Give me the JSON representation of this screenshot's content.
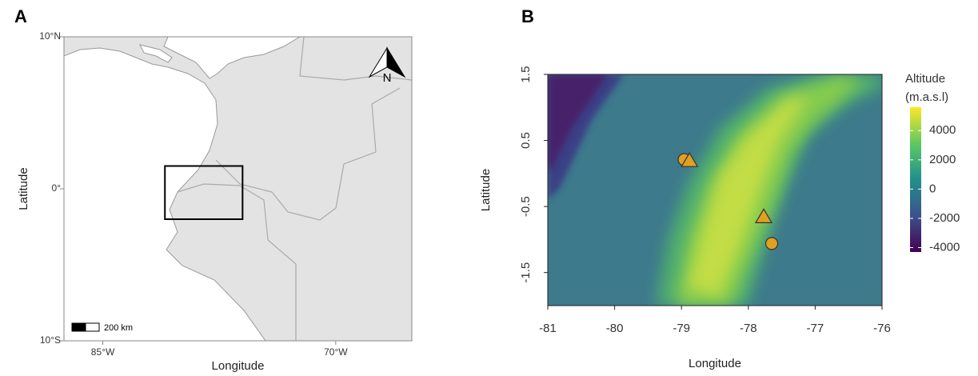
{
  "panels": [
    {
      "label": "A",
      "type": "map",
      "xlabel": "Longitude",
      "ylabel": "Latitude",
      "xlim": [
        -87.5,
        -65.1
      ],
      "ylim": [
        -10,
        10
      ],
      "xticks": [
        {
          "value": -85,
          "label": "85°W"
        },
        {
          "value": -70,
          "label": "70°W"
        }
      ],
      "yticks": [
        {
          "value": 10,
          "label": "10°N"
        },
        {
          "value": 0,
          "label": "0°"
        },
        {
          "value": -10,
          "label": "10°S"
        }
      ],
      "scale_bar": "200 km",
      "north_arrow": "N",
      "land_color": "#e3e3e3"
    },
    {
      "label": "B",
      "type": "raster",
      "xlabel": "Longitude",
      "ylabel": "Latitude",
      "xlim": [
        -81,
        -76
      ],
      "ylim": [
        -2,
        1.5
      ],
      "xticks": [
        -81,
        -80,
        -79,
        -78,
        -77,
        -76
      ],
      "yticks": [
        1.5,
        0.5,
        -0.5,
        -1.5
      ],
      "colorbar": {
        "title": [
          "Altitude",
          "(m.a.s.l)"
        ],
        "lim": [
          -4300,
          5600
        ],
        "ticks": [
          4000,
          2000,
          0,
          -2000,
          -4000
        ]
      },
      "point_color": "#e0a020",
      "points": [
        {
          "shape": "circle",
          "x": -78.96,
          "y": 0.21
        },
        {
          "shape": "triangle",
          "x": -78.88,
          "y": 0.19
        },
        {
          "shape": "triangle",
          "x": -77.77,
          "y": -0.66
        },
        {
          "shape": "circle",
          "x": -77.65,
          "y": -1.06
        }
      ]
    }
  ]
}
